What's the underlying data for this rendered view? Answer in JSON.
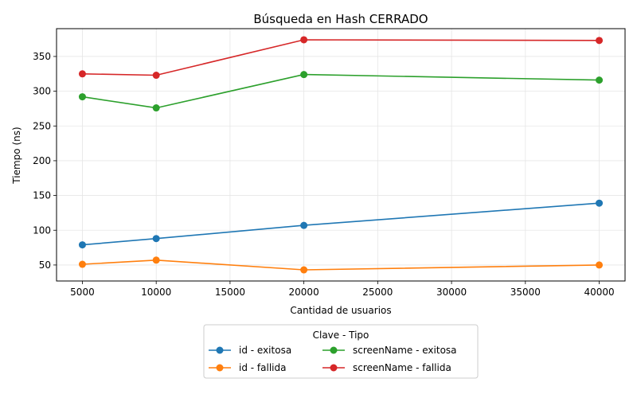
{
  "chart_data": {
    "type": "line",
    "title": "Búsqueda en Hash CERRADO",
    "xlabel": "Cantidad de usuarios",
    "ylabel": "Tiempo (ns)",
    "x": [
      5000,
      10000,
      20000,
      40000
    ],
    "xlim": [
      3250,
      41750
    ],
    "ylim": [
      27,
      390
    ],
    "xticks": [
      5000,
      10000,
      15000,
      20000,
      25000,
      30000,
      35000,
      40000
    ],
    "yticks": [
      50,
      100,
      150,
      200,
      250,
      300,
      350
    ],
    "grid": true,
    "legend": {
      "title": "Clave - Tipo",
      "placement": "below-center"
    },
    "series": [
      {
        "name": "id - exitosa",
        "color": "#1f77b4",
        "values": [
          79,
          88,
          107,
          139
        ]
      },
      {
        "name": "id - fallida",
        "color": "#ff7f0e",
        "values": [
          51,
          57,
          43,
          50
        ]
      },
      {
        "name": "screenName - exitosa",
        "color": "#2ca02c",
        "values": [
          292,
          276,
          324,
          316
        ]
      },
      {
        "name": "screenName - fallida",
        "color": "#d62728",
        "values": [
          325,
          323,
          374,
          373
        ]
      }
    ]
  }
}
